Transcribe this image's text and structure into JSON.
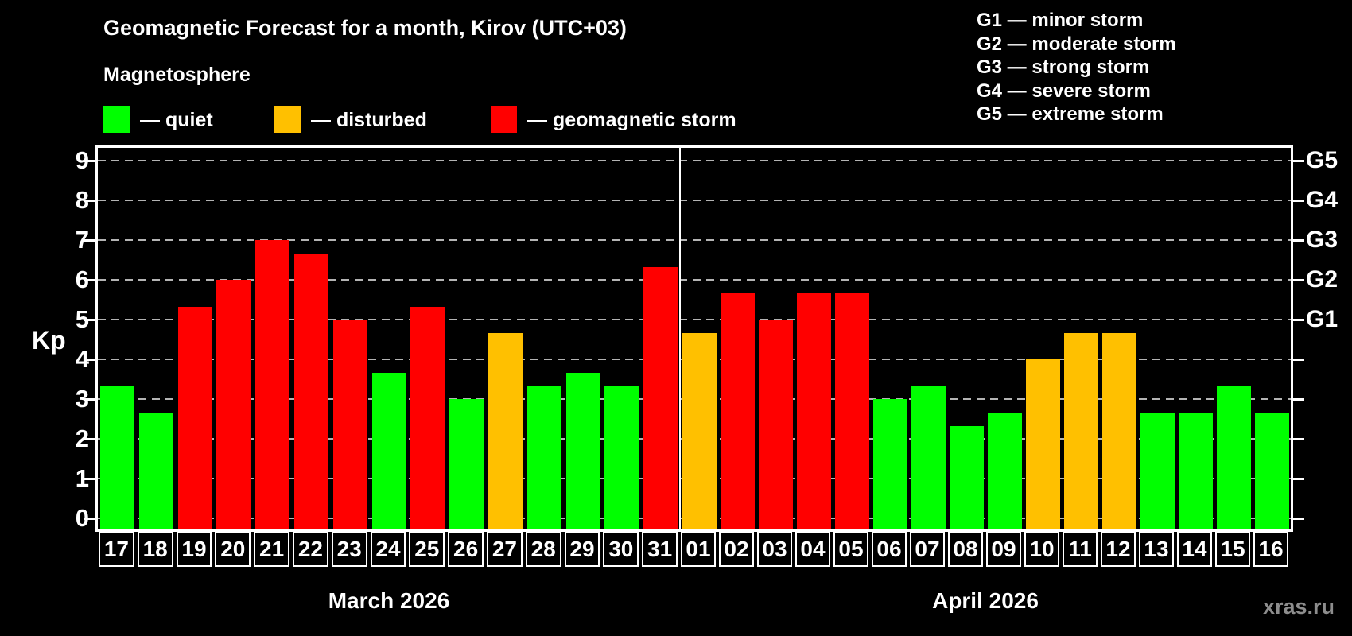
{
  "title": "Geomagnetic Forecast for a month, Kirov (UTC+03)",
  "subtitle": "Magnetosphere",
  "legend": [
    {
      "label": "— quiet",
      "status": "quiet",
      "color": "#00ff00"
    },
    {
      "label": "— disturbed",
      "status": "disturbed",
      "color": "#ffc000"
    },
    {
      "label": "— geomagnetic storm",
      "status": "storm",
      "color": "#ff0000"
    }
  ],
  "g_legend": [
    "G1 — minor storm",
    "G2 — moderate storm",
    "G3 — strong storm",
    "G4 — severe storm",
    "G5 — extreme storm"
  ],
  "watermark": "xras.ru",
  "chart_data": {
    "type": "bar",
    "title": "Geomagnetic Forecast for a month, Kirov (UTC+03)",
    "ylabel": "Kp",
    "ylim": [
      0,
      9.4
    ],
    "yticks": [
      0,
      1,
      2,
      3,
      4,
      5,
      6,
      7,
      8,
      9
    ],
    "grid": "horizontal-dashed",
    "right_axis_labels": [
      {
        "label": "G1",
        "value": 5
      },
      {
        "label": "G2",
        "value": 6
      },
      {
        "label": "G3",
        "value": 7
      },
      {
        "label": "G4",
        "value": 8
      },
      {
        "label": "G5",
        "value": 9
      }
    ],
    "color_map": {
      "quiet": "#00ff00",
      "disturbed": "#ffc000",
      "storm": "#ff0000"
    },
    "series": [
      {
        "month": "March 2026",
        "categories": [
          "17",
          "18",
          "19",
          "20",
          "21",
          "22",
          "23",
          "24",
          "25",
          "26",
          "27",
          "28",
          "29",
          "30",
          "31"
        ],
        "values": [
          3.33,
          2.67,
          5.33,
          6.0,
          7.0,
          6.67,
          5.0,
          3.67,
          5.33,
          3.0,
          4.67,
          3.33,
          3.67,
          3.33,
          6.33
        ],
        "status": [
          "quiet",
          "quiet",
          "storm",
          "storm",
          "storm",
          "storm",
          "storm",
          "quiet",
          "storm",
          "quiet",
          "disturbed",
          "quiet",
          "quiet",
          "quiet",
          "storm"
        ]
      },
      {
        "month": "April 2026",
        "categories": [
          "01",
          "02",
          "03",
          "04",
          "05",
          "06",
          "07",
          "08",
          "09",
          "10",
          "11",
          "12",
          "13",
          "14",
          "15",
          "16"
        ],
        "values": [
          4.67,
          5.67,
          5.0,
          5.67,
          5.67,
          3.0,
          3.33,
          2.33,
          2.67,
          4.0,
          4.67,
          4.67,
          2.67,
          2.67,
          3.33,
          2.67
        ],
        "status": [
          "disturbed",
          "storm",
          "storm",
          "storm",
          "storm",
          "quiet",
          "quiet",
          "quiet",
          "quiet",
          "disturbed",
          "disturbed",
          "disturbed",
          "quiet",
          "quiet",
          "quiet",
          "quiet"
        ]
      }
    ]
  }
}
